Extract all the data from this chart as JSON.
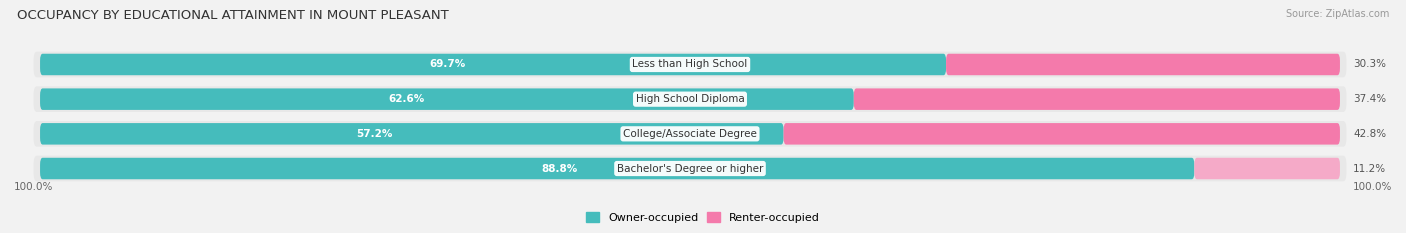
{
  "title": "OCCUPANCY BY EDUCATIONAL ATTAINMENT IN MOUNT PLEASANT",
  "source": "Source: ZipAtlas.com",
  "categories": [
    "Less than High School",
    "High School Diploma",
    "College/Associate Degree",
    "Bachelor's Degree or higher"
  ],
  "owner_values": [
    69.7,
    62.6,
    57.2,
    88.8
  ],
  "renter_values": [
    30.3,
    37.4,
    42.8,
    11.2
  ],
  "owner_color": "#45bcbc",
  "renter_color_strong": "#f47aab",
  "renter_color_weak": "#f5aac8",
  "background_color": "#f2f2f2",
  "row_bg_color": "#e8e8e8",
  "title_fontsize": 9.5,
  "label_fontsize": 7.5,
  "pct_fontsize": 7.5,
  "legend_fontsize": 8,
  "source_fontsize": 7
}
